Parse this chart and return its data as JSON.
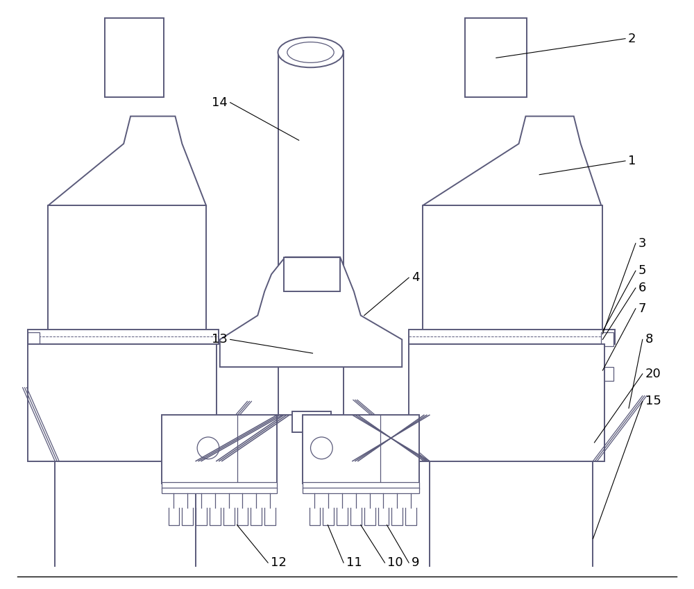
{
  "bg_color": "#ffffff",
  "line_color": "#5a5a7a",
  "lw": 1.4,
  "tlw": 0.9,
  "fig_width": 10.0,
  "fig_height": 8.49
}
